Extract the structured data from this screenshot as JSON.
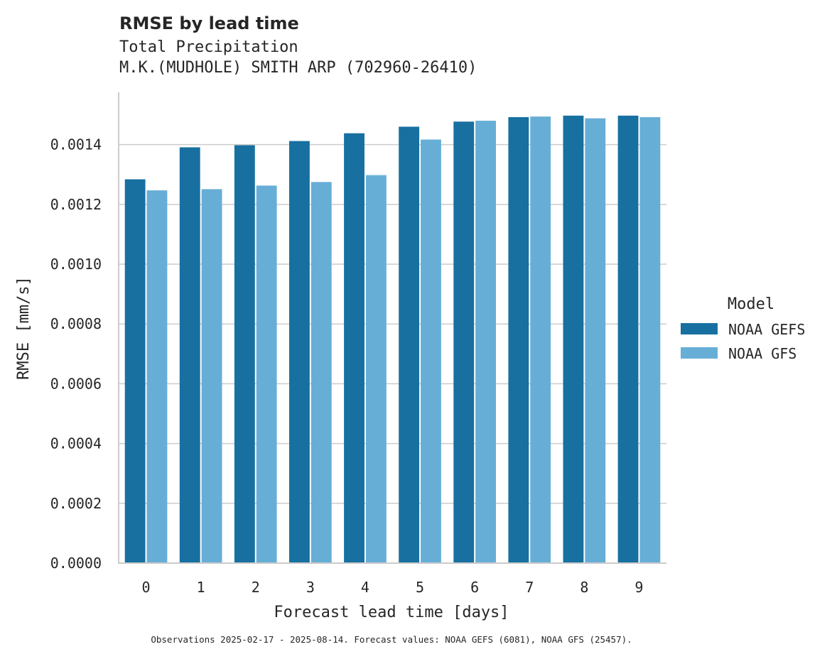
{
  "chart_data": {
    "type": "bar",
    "title": "RMSE by lead time",
    "subtitle_lines": [
      "Total Precipitation",
      "M.K.(MUDHOLE) SMITH ARP (702960-26410)"
    ],
    "xlabel": "Forecast lead time [days]",
    "ylabel": "RMSE [mm/s]",
    "categories": [
      "0",
      "1",
      "2",
      "3",
      "4",
      "5",
      "6",
      "7",
      "8",
      "9"
    ],
    "series": [
      {
        "name": "NOAA GEFS",
        "color": "#1770a0",
        "values": [
          0.001284,
          0.001391,
          0.001398,
          0.001412,
          0.001438,
          0.00146,
          0.001477,
          0.001492,
          0.001497,
          0.001497
        ]
      },
      {
        "name": "NOAA GFS",
        "color": "#67aed7",
        "values": [
          0.001247,
          0.001251,
          0.001263,
          0.001275,
          0.001298,
          0.001417,
          0.00148,
          0.001494,
          0.001488,
          0.001492
        ]
      }
    ],
    "ylim": [
      0,
      0.001575
    ],
    "yticks": [
      "0.0000",
      "0.0002",
      "0.0004",
      "0.0006",
      "0.0008",
      "0.0010",
      "0.0012",
      "0.0014"
    ],
    "ytick_values": [
      0,
      0.0002,
      0.0004,
      0.0006,
      0.0008,
      0.001,
      0.0012,
      0.0014
    ],
    "grid": "horizontal",
    "legend_title": "Model",
    "legend_position": "right",
    "footnote": "Observations 2025-02-17 - 2025-08-14. Forecast values: NOAA GEFS (6081), NOAA GFS (25457)."
  }
}
